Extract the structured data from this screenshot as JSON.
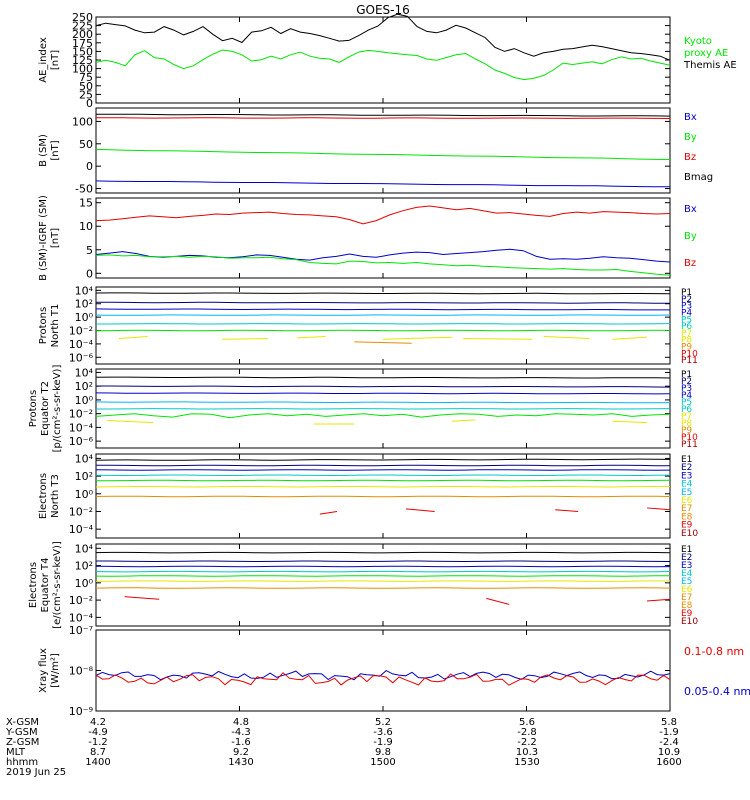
{
  "title": "GOES-16",
  "colors": {
    "black": "#000000",
    "blue": "#0000c8",
    "green": "#00e600",
    "red": "#e60000",
    "navy": "#00007a",
    "cyan": "#00c8c8",
    "lightblue": "#00b4ff",
    "yellow": "#e6e600",
    "orange": "#e68c00",
    "darkred": "#a00000"
  },
  "chart_data": [
    {
      "id": "ae",
      "type": "line",
      "ylabel": [
        "AE_index",
        "[nT]"
      ],
      "ylim": [
        0,
        250
      ],
      "yticks": [
        "0",
        "25",
        "50",
        "75",
        "100",
        "125",
        "150",
        "175",
        "200",
        "225",
        "250"
      ],
      "legend": [
        {
          "text": "Kyoto",
          "color": "green"
        },
        {
          "text": "proxy AE",
          "color": "green"
        },
        {
          "text": "Themis AE",
          "color": "black"
        }
      ],
      "series": [
        {
          "color": "black",
          "values": [
            225,
            232,
            228,
            224,
            212,
            204,
            206,
            222,
            212,
            198,
            208,
            222,
            200,
            181,
            188,
            176,
            206,
            210,
            220,
            202,
            216,
            206,
            202,
            196,
            188,
            180,
            182,
            196,
            212,
            224,
            248,
            258,
            252,
            222,
            208,
            204,
            212,
            226,
            218,
            204,
            190,
            162,
            150,
            158,
            146,
            136,
            146,
            150,
            156,
            158,
            163,
            168,
            164,
            158,
            152,
            146,
            144,
            140,
            136,
            124
          ]
        },
        {
          "color": "green",
          "values": [
            118,
            124,
            118,
            108,
            140,
            152,
            132,
            128,
            112,
            100,
            108,
            126,
            142,
            154,
            150,
            140,
            122,
            126,
            136,
            128,
            140,
            148,
            136,
            130,
            128,
            118,
            134,
            148,
            153,
            150,
            146,
            143,
            140,
            138,
            128,
            124,
            132,
            140,
            144,
            128,
            114,
            96,
            86,
            74,
            68,
            72,
            80,
            96,
            116,
            112,
            116,
            120,
            114,
            126,
            134,
            128,
            130,
            122,
            116,
            110
          ]
        }
      ]
    },
    {
      "id": "bsm",
      "type": "line",
      "ylabel": [
        "B (SM)",
        "[nT]"
      ],
      "ylim": [
        -60,
        130
      ],
      "yticks": [
        "-50",
        "0",
        "50",
        "100"
      ],
      "ytick_values": [
        -50,
        0,
        50,
        100
      ],
      "legend": [
        {
          "text": "Bx",
          "color": "blue"
        },
        {
          "text": "By",
          "color": "green"
        },
        {
          "text": "Bz",
          "color": "red"
        },
        {
          "text": "Bmag",
          "color": "black"
        }
      ],
      "series": [
        {
          "color": "black",
          "start": 116,
          "end": 112
        },
        {
          "color": "red",
          "start": 108,
          "end": 107
        },
        {
          "color": "green",
          "start": 37,
          "end": 15
        },
        {
          "color": "blue",
          "start": -33,
          "end": -46
        }
      ]
    },
    {
      "id": "bigrf",
      "type": "line",
      "ylabel": [
        "B (SM)-IGRF (SM)",
        "[nT]"
      ],
      "ylim": [
        -1,
        16
      ],
      "yticks": [
        "0",
        "5",
        "10",
        "15"
      ],
      "ytick_values": [
        0,
        5,
        10,
        15
      ],
      "legend": [
        {
          "text": "Bx",
          "color": "blue"
        },
        {
          "text": "By",
          "color": "green"
        },
        {
          "text": "Bz",
          "color": "red"
        }
      ],
      "series": [
        {
          "color": "red",
          "values": [
            11.2,
            11.3,
            11.6,
            11.9,
            12.2,
            12.0,
            11.8,
            12.1,
            12.3,
            12.6,
            12.5,
            12.8,
            12.9,
            13.0,
            12.7,
            12.5,
            12.4,
            12.2,
            12.0,
            11.4,
            10.5,
            11.2,
            12.4,
            13.3,
            14.0,
            14.3,
            13.9,
            13.5,
            13.8,
            13.3,
            12.8,
            12.9,
            12.6,
            12.3,
            12.1,
            12.7,
            13.0,
            12.8,
            13.1,
            13.0,
            12.9,
            12.7,
            12.6,
            12.7
          ]
        },
        {
          "color": "blue",
          "values": [
            4.0,
            4.3,
            4.6,
            4.2,
            3.6,
            3.4,
            3.6,
            3.8,
            3.7,
            3.4,
            3.3,
            3.5,
            3.9,
            3.8,
            3.4,
            3.0,
            2.8,
            3.3,
            3.6,
            4.1,
            3.6,
            3.4,
            3.9,
            4.3,
            4.5,
            4.4,
            4.0,
            4.2,
            4.4,
            4.6,
            4.9,
            5.1,
            4.8,
            3.6,
            3.0,
            3.1,
            3.0,
            3.2,
            3.5,
            3.3,
            3.2,
            2.9,
            2.6,
            2.4
          ]
        },
        {
          "color": "green",
          "values": [
            3.8,
            3.9,
            3.7,
            3.8,
            3.5,
            3.5,
            3.6,
            3.4,
            3.6,
            3.5,
            3.2,
            3.3,
            3.3,
            3.4,
            3.1,
            2.9,
            2.3,
            2.1,
            2.0,
            2.6,
            2.5,
            2.2,
            2.3,
            2.1,
            2.3,
            2.0,
            1.8,
            1.6,
            1.7,
            1.5,
            1.4,
            1.2,
            1.1,
            1.0,
            0.9,
            1.0,
            0.8,
            0.7,
            0.7,
            0.8,
            0.4,
            0.1,
            -0.2,
            -0.4
          ]
        }
      ]
    },
    {
      "id": "pn",
      "type": "line",
      "log": true,
      "ylabel": [
        "Protons",
        "North T1"
      ],
      "yticks": [
        "10⁴",
        "10²",
        "10⁰",
        "10⁻²",
        "10⁻⁴",
        "10⁻⁶"
      ],
      "ytick_exp": [
        4,
        2,
        0,
        -2,
        -4,
        -6
      ],
      "yexp_range": [
        -7,
        4.5
      ],
      "legend": [
        {
          "text": "P1",
          "color": "black"
        },
        {
          "text": "P2",
          "color": "navy"
        },
        {
          "text": "P3",
          "color": "blue"
        },
        {
          "text": "P4",
          "color": "blue"
        },
        {
          "text": "P5",
          "color": "cyan"
        },
        {
          "text": "P6",
          "color": "cyan"
        },
        {
          "text": "P7",
          "color": "yellow"
        },
        {
          "text": "P8",
          "color": "yellow"
        },
        {
          "text": "P9",
          "color": "orange"
        },
        {
          "text": "P10",
          "color": "red"
        },
        {
          "text": "P11",
          "color": "darkred"
        }
      ],
      "series": [
        {
          "color": "black",
          "start": 3.6,
          "end": 3.5
        },
        {
          "color": "navy",
          "start": 2.2,
          "end": 2.1
        },
        {
          "color": "blue",
          "start": 1.2,
          "end": 1.1
        },
        {
          "color": "lightblue",
          "start": 0.3,
          "end": 0.3
        },
        {
          "color": "cyan",
          "start": -1.0,
          "end": -1.0
        },
        {
          "color": "green",
          "start": -2.0,
          "end": -2.0
        },
        {
          "color": "yellow",
          "segments": [
            [
              0.04,
              0.09,
              -3.2,
              -2.9
            ],
            [
              0.22,
              0.3,
              -3.3,
              -3.2
            ],
            [
              0.35,
              0.4,
              -3.1,
              -2.9
            ],
            [
              0.5,
              0.62,
              -3.3,
              -3.0
            ],
            [
              0.64,
              0.76,
              -3.2,
              -3.3
            ],
            [
              0.78,
              0.86,
              -2.9,
              -3.2
            ],
            [
              0.9,
              0.96,
              -3.3,
              -3.0
            ]
          ]
        },
        {
          "color": "orange",
          "segments": [
            [
              0.45,
              0.55,
              -3.7,
              -3.9
            ]
          ]
        }
      ]
    },
    {
      "id": "pe",
      "type": "line",
      "log": true,
      "ylabel": [
        "Protons",
        "Equator T2",
        "[p/(cm²-s-sr-keV)]"
      ],
      "yticks": [
        "10⁴",
        "10²",
        "10⁰",
        "10⁻²",
        "10⁻⁴",
        "10⁻⁶"
      ],
      "ytick_exp": [
        4,
        2,
        0,
        -2,
        -4,
        -6
      ],
      "yexp_range": [
        -7,
        4.5
      ],
      "legend": [
        {
          "text": "P1",
          "color": "black"
        },
        {
          "text": "P2",
          "color": "navy"
        },
        {
          "text": "P3",
          "color": "blue"
        },
        {
          "text": "P4",
          "color": "blue"
        },
        {
          "text": "P5",
          "color": "cyan"
        },
        {
          "text": "P6",
          "color": "cyan"
        },
        {
          "text": "P7",
          "color": "yellow"
        },
        {
          "text": "P8",
          "color": "yellow"
        },
        {
          "text": "P9",
          "color": "orange"
        },
        {
          "text": "P10",
          "color": "red"
        },
        {
          "text": "P11",
          "color": "darkred"
        }
      ],
      "series": [
        {
          "color": "black",
          "start": 3.3,
          "end": 3.2
        },
        {
          "color": "navy",
          "start": 2.0,
          "end": 1.9
        },
        {
          "color": "blue",
          "start": 1.0,
          "end": 0.9
        },
        {
          "color": "lightblue",
          "start": -0.3,
          "end": -0.4
        },
        {
          "color": "cyan",
          "start": -1.3,
          "end": -1.3
        },
        {
          "color": "green",
          "values": [
            -2.4,
            -2.2,
            -2.0,
            -2.3,
            -2.5,
            -2.0,
            -2.1,
            -2.6,
            -2.2,
            -2.0,
            -2.3,
            -2.1,
            -2.4,
            -2.2,
            -2.0,
            -2.3,
            -2.1,
            -2.5,
            -2.2,
            -2.0,
            -2.1,
            -2.4,
            -2.2,
            -2.3,
            -2.0,
            -2.1,
            -2.2,
            -2.0,
            -2.4,
            -2.2,
            -2.1
          ]
        },
        {
          "color": "yellow",
          "segments": [
            [
              0.02,
              0.1,
              -3.0,
              -3.3
            ],
            [
              0.38,
              0.45,
              -3.5,
              -3.5
            ],
            [
              0.62,
              0.66,
              -3.1,
              -2.9
            ],
            [
              0.9,
              0.96,
              -3.1,
              -3.3
            ]
          ]
        }
      ]
    },
    {
      "id": "en",
      "type": "line",
      "log": true,
      "ylabel": [
        "Electrons",
        "North T3"
      ],
      "yticks": [
        "10⁴",
        "10²",
        "10⁰",
        "10⁻²",
        "10⁻⁴"
      ],
      "ytick_exp": [
        4,
        2,
        0,
        -2,
        -4
      ],
      "yexp_range": [
        -5,
        4.5
      ],
      "legend": [
        {
          "text": "E1",
          "color": "black"
        },
        {
          "text": "E2",
          "color": "navy"
        },
        {
          "text": "E3",
          "color": "blue"
        },
        {
          "text": "E4",
          "color": "cyan"
        },
        {
          "text": "E5",
          "color": "lightblue"
        },
        {
          "text": "E6",
          "color": "yellow"
        },
        {
          "text": "E7",
          "color": "orange"
        },
        {
          "text": "E8",
          "color": "orange"
        },
        {
          "text": "E9",
          "color": "red"
        },
        {
          "text": "E10",
          "color": "darkred"
        }
      ],
      "series": [
        {
          "color": "black",
          "start": 3.8,
          "end": 3.9
        },
        {
          "color": "navy",
          "start": 3.2,
          "end": 3.2
        },
        {
          "color": "blue",
          "start": 2.7,
          "end": 2.7
        },
        {
          "color": "cyan",
          "start": 2.1,
          "end": 2.1
        },
        {
          "color": "green",
          "start": 1.5,
          "end": 1.5
        },
        {
          "color": "yellow",
          "start": 0.8,
          "end": 0.8
        },
        {
          "color": "orange",
          "start": -0.3,
          "end": -0.3
        },
        {
          "color": "red",
          "segments": [
            [
              0.39,
              0.42,
              -2.3,
              -2.0
            ],
            [
              0.54,
              0.59,
              -1.7,
              -2.0
            ],
            [
              0.8,
              0.84,
              -1.8,
              -2.0
            ],
            [
              0.96,
              1.0,
              -1.6,
              -1.8
            ]
          ]
        }
      ]
    },
    {
      "id": "ee",
      "type": "line",
      "log": true,
      "ylabel": [
        "Electrons",
        "Equator T4",
        "[e/(cm²-s-sr-keV)]"
      ],
      "yticks": [
        "10⁴",
        "10²",
        "10⁰",
        "10⁻²",
        "10⁻⁴"
      ],
      "ytick_exp": [
        4,
        2,
        0,
        -2,
        -4
      ],
      "yexp_range": [
        -5,
        4.5
      ],
      "legend": [
        {
          "text": "E1",
          "color": "black"
        },
        {
          "text": "E2",
          "color": "navy"
        },
        {
          "text": "E3",
          "color": "blue"
        },
        {
          "text": "E4",
          "color": "cyan"
        },
        {
          "text": "E5",
          "color": "lightblue"
        },
        {
          "text": "E6",
          "color": "yellow"
        },
        {
          "text": "E7",
          "color": "orange"
        },
        {
          "text": "E8",
          "color": "orange"
        },
        {
          "text": "E9",
          "color": "red"
        },
        {
          "text": "E10",
          "color": "darkred"
        }
      ],
      "series": [
        {
          "color": "black",
          "start": 3.5,
          "end": 3.5
        },
        {
          "color": "navy",
          "start": 2.5,
          "end": 2.5
        },
        {
          "color": "blue",
          "start": 1.9,
          "end": 1.9
        },
        {
          "color": "cyan",
          "start": 1.3,
          "end": 1.3
        },
        {
          "color": "green",
          "start": 0.8,
          "end": 0.8
        },
        {
          "color": "yellow",
          "start": 0.2,
          "end": 0.2
        },
        {
          "color": "orange",
          "start": -0.6,
          "end": -0.6
        },
        {
          "color": "red",
          "segments": [
            [
              0.05,
              0.11,
              -1.6,
              -1.9
            ],
            [
              0.68,
              0.72,
              -1.8,
              -2.5
            ],
            [
              0.96,
              1.0,
              -2.1,
              -1.9
            ]
          ]
        }
      ]
    },
    {
      "id": "xray",
      "type": "line",
      "log": true,
      "ylabel": [
        "Xray flux",
        "[W/m²]"
      ],
      "yticks": [
        "10⁻⁷",
        "10⁻⁸",
        "10⁻⁹"
      ],
      "ytick_exp": [
        -7,
        -8,
        -9
      ],
      "yexp_range": [
        -9,
        -7
      ],
      "legend": [
        {
          "text": "0.1-0.8 nm",
          "color": "red"
        },
        {
          "text": "0.05-0.4 nm",
          "color": "blue"
        }
      ],
      "series": [
        {
          "color": "blue",
          "base": -8.12,
          "amp": 0.09
        },
        {
          "color": "red",
          "base": -8.22,
          "amp": 0.12
        }
      ]
    }
  ],
  "x_axis": {
    "rows": [
      {
        "label": "X-GSM",
        "values": [
          "4.2",
          "4.8",
          "5.2",
          "5.6",
          "5.8"
        ]
      },
      {
        "label": "Y-GSM",
        "values": [
          "-4.9",
          "-4.3",
          "-3.6",
          "-2.8",
          "-1.9"
        ]
      },
      {
        "label": "Z-GSM",
        "values": [
          "-1.2",
          "-1.6",
          "-1.9",
          "-2.2",
          "-2.4"
        ]
      },
      {
        "label": "MLT",
        "values": [
          "8.7",
          "9.2",
          "9.8",
          "10.3",
          "10.9"
        ]
      },
      {
        "label": "hhmm",
        "values": [
          "1400",
          "1430",
          "1500",
          "1530",
          "1600"
        ]
      }
    ],
    "date": "2019 Jun 25"
  }
}
